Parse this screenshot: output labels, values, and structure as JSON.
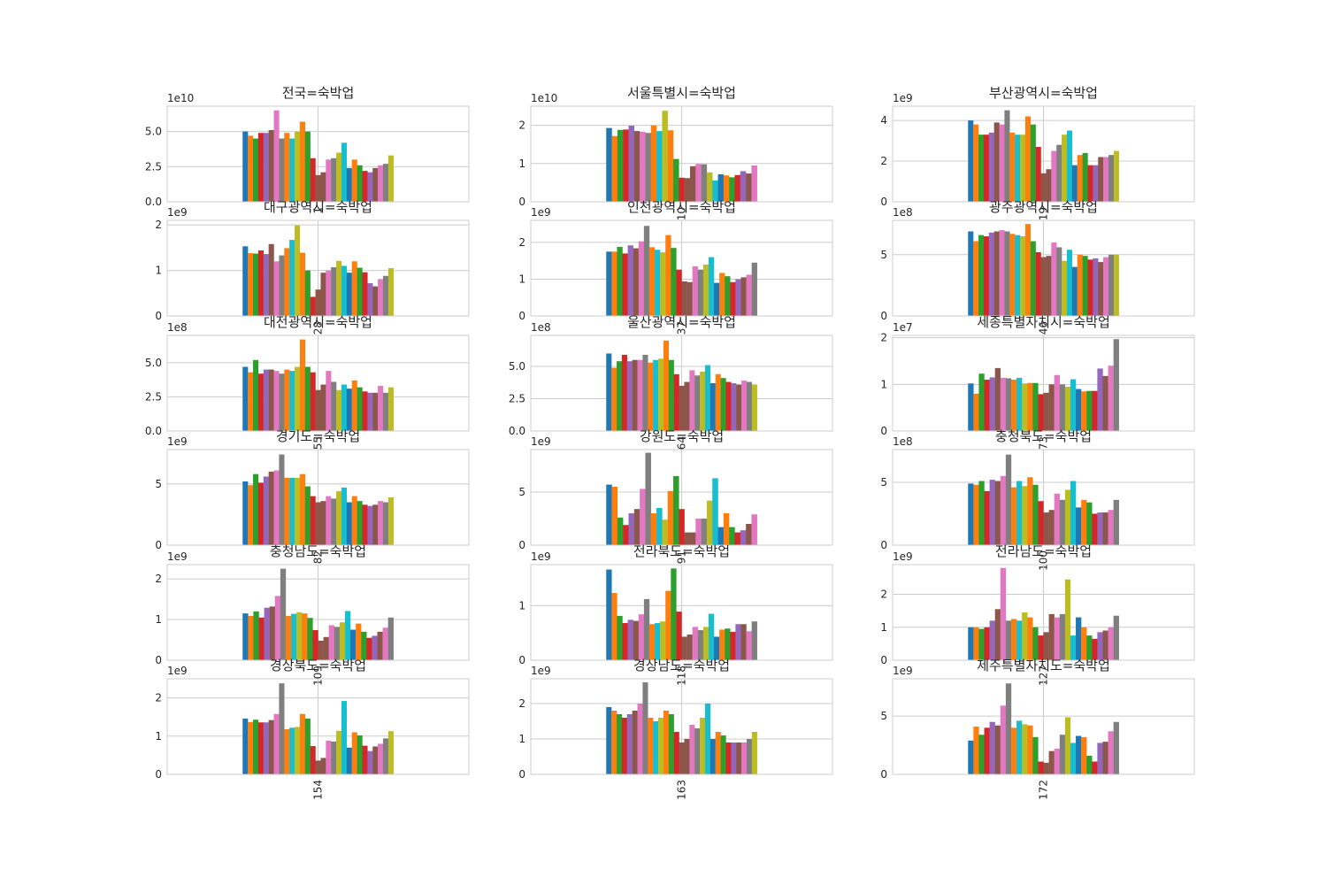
{
  "chart_data": [
    {
      "type": "bar",
      "title": "전국=숙박업",
      "offset_text": "1e10",
      "scale": 10000000000.0,
      "ylim": [
        0,
        6.8
      ],
      "yticks": [
        0,
        2.5,
        5
      ],
      "ytick_labels": [
        "0.0",
        "2.5",
        "5.0"
      ],
      "xtick": "1",
      "values": [
        5.0,
        4.7,
        4.5,
        4.9,
        4.9,
        5.1,
        6.5,
        4.5,
        4.9,
        4.5,
        5.0,
        5.7,
        5.0,
        3.1,
        1.9,
        2.1,
        3.0,
        3.1,
        3.5,
        4.2,
        2.4,
        3.0,
        2.6,
        2.2,
        2.1,
        2.4,
        2.6,
        2.7,
        3.3
      ]
    },
    {
      "type": "bar",
      "title": "서울특별시=숙박업",
      "offset_text": "1e10",
      "scale": 10000000000.0,
      "ylim": [
        0,
        2.5
      ],
      "yticks": [
        0,
        1,
        2
      ],
      "ytick_labels": [
        "0",
        "1",
        "2"
      ],
      "xtick": "10",
      "values": [
        1.93,
        1.72,
        1.88,
        1.89,
        1.99,
        1.85,
        1.83,
        1.8,
        2.0,
        1.85,
        2.38,
        1.87,
        1.12,
        0.63,
        0.62,
        0.93,
        0.99,
        0.98,
        0.77,
        0.56,
        0.72,
        0.69,
        0.64,
        0.7,
        0.8,
        0.74,
        0.95
      ]
    },
    {
      "type": "bar",
      "title": "부산광역시=숙박업",
      "offset_text": "1e9",
      "scale": 1000000000.0,
      "ylim": [
        0,
        4.7
      ],
      "yticks": [
        0,
        2,
        4
      ],
      "ytick_labels": [
        "0",
        "2",
        "4"
      ],
      "xtick": "19",
      "values": [
        4.0,
        3.8,
        3.3,
        3.3,
        3.4,
        3.9,
        3.8,
        4.5,
        3.4,
        3.3,
        3.3,
        4.2,
        3.8,
        2.7,
        1.4,
        1.6,
        2.5,
        2.8,
        3.3,
        3.5,
        1.8,
        2.3,
        2.4,
        1.8,
        1.8,
        2.2,
        2.2,
        2.3,
        2.5
      ]
    },
    {
      "type": "bar",
      "title": "대구광역시=숙박업",
      "offset_text": "1e9",
      "scale": 1000000000.0,
      "ylim": [
        0,
        2.1
      ],
      "yticks": [
        0,
        1,
        2
      ],
      "ytick_labels": [
        "0",
        "1",
        "2"
      ],
      "xtick": "28",
      "values": [
        1.53,
        1.38,
        1.37,
        1.44,
        1.36,
        1.58,
        1.2,
        1.33,
        1.49,
        1.67,
        1.99,
        1.39,
        1.0,
        0.42,
        0.58,
        0.95,
        1.0,
        1.07,
        1.21,
        1.1,
        0.95,
        1.2,
        1.06,
        0.96,
        0.72,
        0.65,
        0.81,
        0.88,
        1.05
      ]
    },
    {
      "type": "bar",
      "title": "인천광역시=숙박업",
      "offset_text": "1e9",
      "scale": 1000000000.0,
      "ylim": [
        0,
        2.6
      ],
      "yticks": [
        0,
        1,
        2
      ],
      "ytick_labels": [
        "0",
        "1",
        "2"
      ],
      "xtick": "37",
      "values": [
        1.75,
        1.75,
        1.88,
        1.7,
        1.92,
        1.84,
        2.03,
        2.45,
        1.87,
        1.8,
        1.73,
        2.2,
        1.85,
        1.26,
        0.94,
        0.92,
        1.35,
        1.26,
        1.4,
        1.6,
        0.9,
        1.17,
        1.08,
        0.92,
        1.0,
        1.05,
        1.12,
        1.45
      ]
    },
    {
      "type": "bar",
      "title": "광주광역시=숙박업",
      "offset_text": "1e8",
      "scale": 100000000.0,
      "ylim": [
        0,
        7.8
      ],
      "yticks": [
        0,
        5
      ],
      "ytick_labels": [
        "0",
        "5"
      ],
      "xtick": "46",
      "values": [
        6.9,
        6.1,
        6.6,
        6.5,
        6.8,
        6.9,
        7.0,
        6.9,
        6.7,
        6.6,
        6.5,
        7.5,
        6.1,
        5.2,
        4.8,
        4.9,
        6.0,
        5.6,
        4.5,
        5.4,
        4.0,
        5.0,
        4.9,
        4.6,
        4.7,
        4.4,
        4.8,
        5.0,
        5.0
      ]
    },
    {
      "type": "bar",
      "title": "대전광역시=숙박업",
      "offset_text": "1e8",
      "scale": 100000000.0,
      "ylim": [
        0,
        7.0
      ],
      "yticks": [
        0,
        2.5,
        5
      ],
      "ytick_labels": [
        "0.0",
        "2.5",
        "5.0"
      ],
      "xtick": "55",
      "values": [
        4.7,
        4.3,
        5.2,
        4.2,
        4.5,
        4.5,
        4.4,
        4.2,
        4.5,
        4.4,
        4.7,
        6.7,
        4.7,
        4.3,
        3.0,
        3.4,
        4.4,
        3.6,
        3.0,
        3.4,
        3.1,
        3.7,
        3.2,
        2.9,
        2.8,
        2.8,
        3.3,
        2.8,
        3.2
      ]
    },
    {
      "type": "bar",
      "title": "울산광역시=숙박업",
      "offset_text": "1e8",
      "scale": 100000000.0,
      "ylim": [
        0,
        7.4
      ],
      "yticks": [
        0,
        2.5,
        5
      ],
      "ytick_labels": [
        "0.0",
        "2.5",
        "5.0"
      ],
      "xtick": "64",
      "values": [
        6.0,
        4.9,
        5.4,
        5.9,
        5.4,
        5.5,
        5.5,
        5.9,
        5.3,
        5.5,
        5.6,
        7.0,
        5.5,
        4.4,
        3.5,
        3.8,
        4.7,
        4.3,
        4.6,
        5.1,
        3.7,
        4.4,
        4.1,
        3.8,
        3.7,
        3.6,
        3.9,
        3.8,
        3.6
      ]
    },
    {
      "type": "bar",
      "title": "세종특별자치시=숙박업",
      "offset_text": "1e7",
      "scale": 10000000.0,
      "ylim": [
        0,
        2.05
      ],
      "yticks": [
        0,
        1,
        2
      ],
      "ytick_labels": [
        "0",
        "1",
        "2"
      ],
      "xtick": "73",
      "values": [
        1.02,
        0.8,
        1.23,
        1.1,
        1.15,
        1.35,
        1.14,
        1.13,
        1.1,
        1.14,
        1.02,
        1.03,
        1.03,
        0.79,
        0.82,
        1.0,
        1.2,
        1.0,
        0.95,
        1.11,
        0.9,
        0.85,
        0.86,
        0.86,
        1.34,
        1.18,
        1.4,
        1.97
      ]
    },
    {
      "type": "bar",
      "title": "경기도=숙박업",
      "offset_text": "1e9",
      "scale": 1000000000.0,
      "ylim": [
        0,
        7.8
      ],
      "yticks": [
        0,
        5
      ],
      "ytick_labels": [
        "0",
        "5"
      ],
      "xtick": "82",
      "values": [
        5.2,
        4.9,
        5.8,
        5.1,
        5.6,
        6.0,
        6.1,
        7.4,
        5.5,
        5.5,
        5.5,
        5.8,
        4.8,
        4.0,
        3.5,
        3.6,
        4.0,
        3.8,
        4.4,
        4.7,
        3.5,
        4.0,
        3.6,
        3.3,
        3.2,
        3.3,
        3.6,
        3.5,
        3.9
      ]
    },
    {
      "type": "bar",
      "title": "강원도=숙박업",
      "offset_text": "1e9",
      "scale": 1000000000.0,
      "ylim": [
        0,
        9.0
      ],
      "yticks": [
        0,
        5
      ],
      "ytick_labels": [
        "0",
        "5"
      ],
      "xtick": "91",
      "values": [
        5.7,
        5.5,
        2.6,
        1.9,
        3.0,
        3.4,
        5.3,
        8.7,
        3.0,
        3.5,
        2.4,
        5.1,
        6.5,
        3.4,
        1.2,
        1.2,
        2.5,
        2.5,
        4.2,
        6.3,
        1.7,
        3.0,
        1.7,
        1.2,
        1.4,
        2.0,
        2.9
      ]
    },
    {
      "type": "bar",
      "title": "충청북도=숙박업",
      "offset_text": "1e8",
      "scale": 100000000.0,
      "ylim": [
        0,
        7.6
      ],
      "yticks": [
        0,
        5
      ],
      "ytick_labels": [
        "0",
        "5"
      ],
      "xtick": "100",
      "values": [
        4.9,
        4.8,
        5.1,
        4.3,
        5.2,
        5.1,
        5.5,
        7.2,
        4.6,
        5.1,
        4.7,
        5.4,
        4.8,
        3.5,
        2.6,
        2.8,
        4.1,
        3.6,
        4.4,
        5.1,
        3.0,
        3.6,
        3.4,
        2.5,
        2.6,
        2.6,
        2.8,
        3.6
      ]
    },
    {
      "type": "bar",
      "title": "충청남도=숙박업",
      "offset_text": "1e9",
      "scale": 1000000000.0,
      "ylim": [
        0,
        2.35
      ],
      "yticks": [
        0,
        1,
        2
      ],
      "ytick_labels": [
        "0",
        "1",
        "2"
      ],
      "xtick": "109",
      "values": [
        1.15,
        1.09,
        1.2,
        1.05,
        1.29,
        1.32,
        1.58,
        2.25,
        1.09,
        1.14,
        1.18,
        1.15,
        1.04,
        0.74,
        0.48,
        0.57,
        0.86,
        0.82,
        0.93,
        1.21,
        0.75,
        0.9,
        0.7,
        0.55,
        0.6,
        0.7,
        0.8,
        1.05
      ]
    },
    {
      "type": "bar",
      "title": "전라북도=숙박업",
      "offset_text": "1e9",
      "scale": 1000000000.0,
      "ylim": [
        0,
        1.75
      ],
      "yticks": [
        0,
        1
      ],
      "ytick_labels": [
        "0",
        "1"
      ],
      "xtick": "118",
      "values": [
        1.66,
        1.23,
        0.81,
        0.68,
        0.74,
        0.72,
        0.84,
        1.12,
        0.66,
        0.68,
        0.71,
        1.27,
        1.68,
        0.89,
        0.43,
        0.47,
        0.61,
        0.55,
        0.61,
        0.85,
        0.43,
        0.56,
        0.58,
        0.52,
        0.66,
        0.66,
        0.53,
        0.71
      ]
    },
    {
      "type": "bar",
      "title": "전라남도=숙박업",
      "offset_text": "1e9",
      "scale": 1000000000.0,
      "ylim": [
        0,
        2.9
      ],
      "yticks": [
        0,
        1,
        2
      ],
      "ytick_labels": [
        "0",
        "1",
        "2"
      ],
      "xtick": "127",
      "values": [
        1.0,
        1.0,
        0.95,
        1.0,
        1.2,
        1.55,
        2.8,
        1.2,
        1.25,
        1.2,
        1.45,
        1.3,
        1.0,
        0.75,
        0.85,
        1.4,
        1.3,
        1.4,
        2.45,
        0.75,
        1.3,
        1.0,
        0.75,
        0.65,
        0.85,
        0.9,
        1.0,
        1.35
      ]
    },
    {
      "type": "bar",
      "title": "경상북도=숙박업",
      "offset_text": "1e9",
      "scale": 1000000000.0,
      "ylim": [
        0,
        2.5
      ],
      "yticks": [
        0,
        1,
        2
      ],
      "ytick_labels": [
        "0",
        "1",
        "2"
      ],
      "xtick": "154",
      "values": [
        1.46,
        1.37,
        1.43,
        1.36,
        1.36,
        1.42,
        1.58,
        2.38,
        1.18,
        1.22,
        1.24,
        1.58,
        1.46,
        0.74,
        0.36,
        0.43,
        0.88,
        0.86,
        1.14,
        1.92,
        0.7,
        1.1,
        1.02,
        0.75,
        0.61,
        0.73,
        0.8,
        0.94,
        1.13
      ]
    },
    {
      "type": "bar",
      "title": "경상남도=숙박업",
      "offset_text": "1e9",
      "scale": 1000000000.0,
      "ylim": [
        0,
        2.7
      ],
      "yticks": [
        0,
        1,
        2
      ],
      "ytick_labels": [
        "0",
        "1",
        "2"
      ],
      "xtick": "163",
      "values": [
        1.9,
        1.8,
        1.7,
        1.6,
        1.7,
        1.8,
        2.0,
        2.6,
        1.6,
        1.5,
        1.6,
        1.8,
        1.7,
        1.2,
        0.9,
        1.0,
        1.4,
        1.3,
        1.6,
        2.0,
        1.0,
        1.2,
        1.1,
        0.9,
        0.9,
        0.9,
        0.9,
        1.0,
        1.2
      ]
    },
    {
      "type": "bar",
      "title": "제주특별자치도=숙박업",
      "offset_text": "1e9",
      "scale": 1000000000.0,
      "ylim": [
        0,
        8.2
      ],
      "yticks": [
        0,
        5
      ],
      "ytick_labels": [
        "0",
        "5"
      ],
      "xtick": "172",
      "values": [
        2.9,
        4.1,
        3.4,
        4.0,
        4.5,
        4.2,
        5.9,
        7.8,
        4.0,
        4.6,
        4.3,
        4.2,
        3.2,
        1.1,
        1.0,
        2.0,
        2.2,
        3.4,
        4.9,
        2.7,
        3.3,
        3.2,
        1.6,
        1.1,
        2.7,
        2.8,
        3.7,
        4.5
      ]
    }
  ],
  "colors": [
    "#1f77b4",
    "#ff7f0e",
    "#2ca02c",
    "#d62728",
    "#9467bd",
    "#8c564b",
    "#e377c2",
    "#7f7f7f",
    "#bcbd22",
    "#17becf"
  ],
  "color_sequence": [
    0,
    1,
    2,
    3,
    4,
    5,
    6,
    7,
    1,
    9,
    8,
    1,
    2,
    3,
    5,
    5,
    6,
    7,
    8,
    9,
    0,
    1,
    2,
    3,
    4,
    5,
    6,
    7,
    8
  ],
  "xlim": [
    -0.5,
    0.5
  ]
}
